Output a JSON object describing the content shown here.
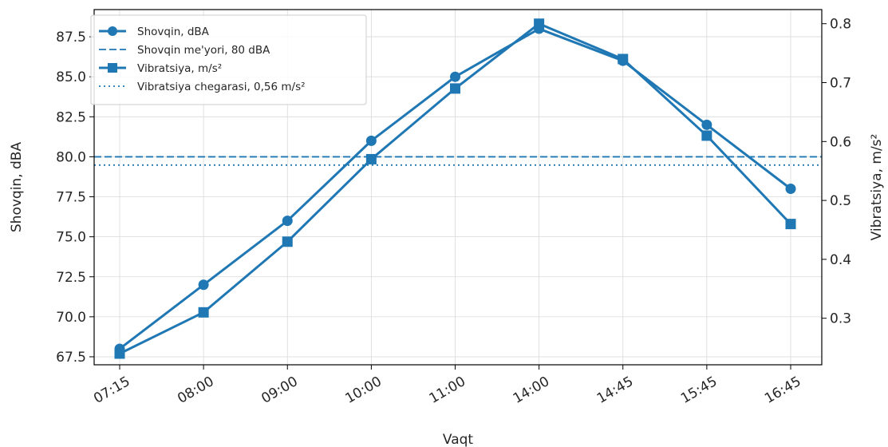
{
  "chart_data": {
    "type": "line",
    "title": "",
    "xlabel": "Vaqt",
    "ylabel_left": "Shovqin, dBA",
    "ylabel_right": "Vibratsiya, m/s²",
    "categories": [
      "07:15",
      "08:00",
      "09:00",
      "10:00",
      "11:00",
      "14:00",
      "14:45",
      "15:45",
      "16:45"
    ],
    "ylim_left": [
      67,
      89.2
    ],
    "ylim_right": [
      0.221,
      0.824
    ],
    "yticks_left": [
      "67.5",
      "70.0",
      "72.5",
      "75.0",
      "77.5",
      "80.0",
      "82.5",
      "85.0",
      "87.5"
    ],
    "yticks_right": [
      "0.3",
      "0.4",
      "0.5",
      "0.6",
      "0.7",
      "0.8"
    ],
    "grid": true,
    "legend_position": "top-left",
    "series": [
      {
        "name": "Shovqin, dBA",
        "axis": "left",
        "marker": "circle",
        "line": "solid",
        "color": "#1f77b4",
        "values": [
          68,
          72,
          76,
          81,
          85,
          88,
          86,
          82,
          78
        ]
      },
      {
        "name": "Vibratsiya, m/s²",
        "axis": "right",
        "marker": "square",
        "line": "solid",
        "color": "#1f77b4",
        "values": [
          0.24,
          0.31,
          0.43,
          0.57,
          0.69,
          0.8,
          0.74,
          0.61,
          0.46
        ]
      }
    ],
    "reference_lines": [
      {
        "name": "Shovqin me'yori, 80 dBA",
        "axis": "left",
        "value": 80,
        "style": "dashed",
        "color": "#1f77b4"
      },
      {
        "name": "Vibratsiya chegarasi, 0,56 m/s²",
        "axis": "right",
        "value": 0.56,
        "style": "dotted",
        "color": "#1f77b4"
      }
    ]
  }
}
